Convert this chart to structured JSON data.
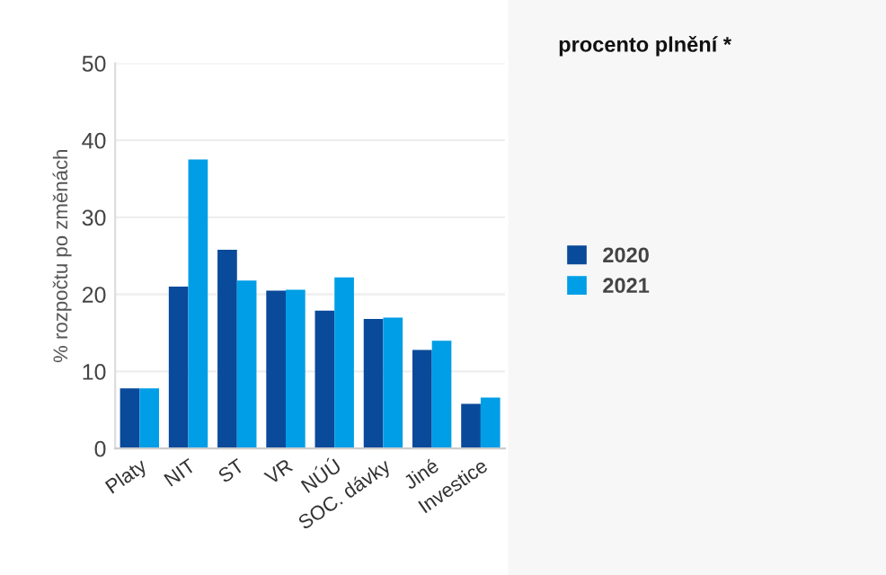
{
  "chart_data": {
    "type": "bar",
    "legend_title": "procento plnění *",
    "ylabel": "% rozpočtu po změnách",
    "categories": [
      "Platy",
      "NIT",
      "ST",
      "VR",
      "NÚÚ",
      "SOC. dávky",
      "Jiné",
      "Investice"
    ],
    "series": [
      {
        "name": "2020",
        "color": "#0a4a9a",
        "values": [
          7.8,
          21,
          25.8,
          20.5,
          17.9,
          16.8,
          12.8,
          5.8
        ]
      },
      {
        "name": "2021",
        "color": "#009ee6",
        "values": [
          7.8,
          37.5,
          21.8,
          20.6,
          22.2,
          17,
          14,
          6.6
        ]
      }
    ],
    "ylim": [
      0,
      50
    ],
    "yticks": [
      0,
      10,
      20,
      30,
      40,
      50
    ],
    "grid": true,
    "legend": "right"
  }
}
